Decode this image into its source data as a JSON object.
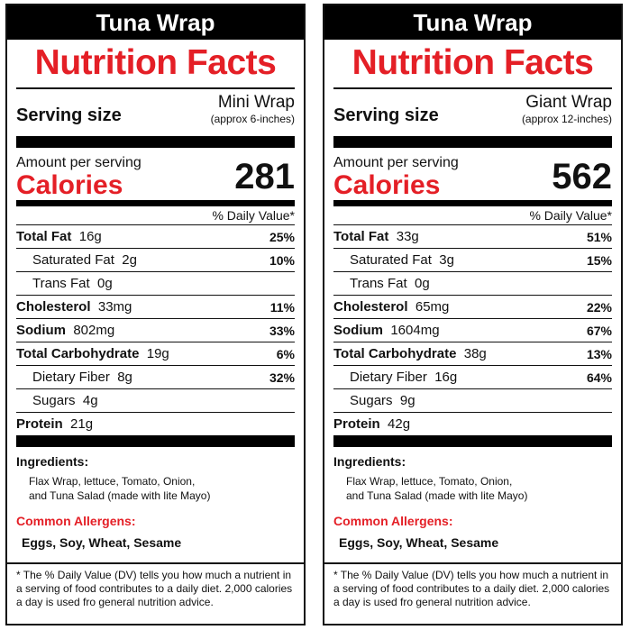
{
  "labels": [
    {
      "title": "Tuna Wrap",
      "heading": "Nutrition Facts",
      "serving_label": "Serving size",
      "serving_size": "Mini Wrap",
      "serving_note": "(approx 6-inches)",
      "amount_per_serving": "Amount per serving",
      "calories_label": "Calories",
      "calories": "281",
      "dv_header": "% Daily Value*",
      "rows": [
        {
          "name": "Total Fat",
          "amount": "16g",
          "pct": "25%"
        },
        {
          "name": "Saturated Fat",
          "amount": "2g",
          "pct": "10%"
        },
        {
          "name": "Trans Fat",
          "amount": "0g",
          "pct": ""
        },
        {
          "name": "Cholesterol",
          "amount": "33mg",
          "pct": "11%"
        },
        {
          "name": "Sodium",
          "amount": "802mg",
          "pct": "33%"
        },
        {
          "name": "Total Carbohydrate",
          "amount": "19g",
          "pct": "6%"
        },
        {
          "name": "Dietary Fiber",
          "amount": "8g",
          "pct": "32%"
        },
        {
          "name": "Sugars",
          "amount": "4g",
          "pct": ""
        },
        {
          "name": "Protein",
          "amount": "21g",
          "pct": ""
        }
      ],
      "ingredients_heading": "Ingredients:",
      "ingredients_line1": "Flax Wrap,  lettuce, Tomato, Onion,",
      "ingredients_line2": "and Tuna Salad (made with lite Mayo)",
      "allergens_heading": "Common Allergens:",
      "allergens": "Eggs, Soy, Wheat, Sesame",
      "footnote_line1": "* The % Daily Value (DV) tells you how much a nutrient in",
      "footnote_line2": "a serving of food contributes to a daily diet.  2,000 calories",
      "footnote_line3": "a day is used fro general nutrition advice."
    },
    {
      "title": "Tuna Wrap",
      "heading": "Nutrition Facts",
      "serving_label": "Serving size",
      "serving_size": "Giant Wrap",
      "serving_note": "(approx 12-inches)",
      "amount_per_serving": "Amount per serving",
      "calories_label": "Calories",
      "calories": "562",
      "dv_header": "% Daily Value*",
      "rows": [
        {
          "name": "Total Fat",
          "amount": "33g",
          "pct": "51%"
        },
        {
          "name": "Saturated Fat",
          "amount": "3g",
          "pct": "15%"
        },
        {
          "name": "Trans Fat",
          "amount": "0g",
          "pct": ""
        },
        {
          "name": "Cholesterol",
          "amount": "65mg",
          "pct": "22%"
        },
        {
          "name": "Sodium",
          "amount": "1604mg",
          "pct": "67%"
        },
        {
          "name": "Total Carbohydrate",
          "amount": "38g",
          "pct": "13%"
        },
        {
          "name": "Dietary Fiber",
          "amount": "16g",
          "pct": "64%"
        },
        {
          "name": "Sugars",
          "amount": "9g",
          "pct": ""
        },
        {
          "name": "Protein",
          "amount": "42g",
          "pct": ""
        }
      ],
      "ingredients_heading": "Ingredients:",
      "ingredients_line1": "Flax Wrap,  lettuce, Tomato, Onion,",
      "ingredients_line2": "and Tuna Salad (made with lite Mayo)",
      "allergens_heading": "Common Allergens:",
      "allergens": "Eggs, Soy, Wheat, Sesame",
      "footnote_line1": "* The % Daily Value (DV) tells you how much a nutrient in",
      "footnote_line2": "a serving of food contributes to a daily diet.  2,000 calories",
      "footnote_line3": "a day is used fro general nutrition advice."
    }
  ],
  "colors": {
    "accent": "#e41f26",
    "ink": "#111111"
  }
}
